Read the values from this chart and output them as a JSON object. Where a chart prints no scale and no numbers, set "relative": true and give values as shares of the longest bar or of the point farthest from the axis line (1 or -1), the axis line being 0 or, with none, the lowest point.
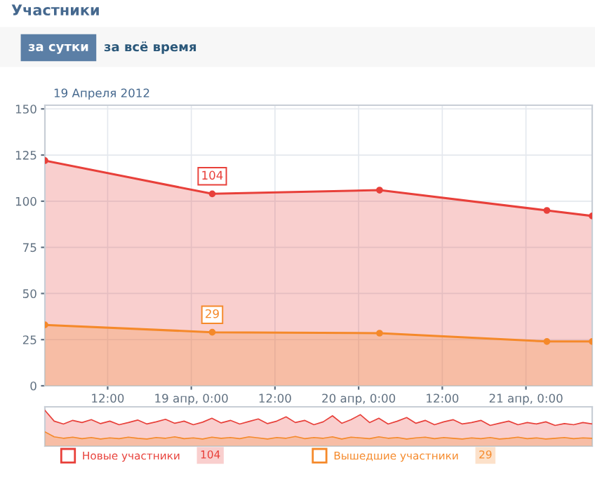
{
  "chart_data": [
    {
      "type": "area",
      "title": "Участники",
      "subtitle": "19 Апреля 2012",
      "annotations": [
        "за сутки",
        "за всё время",
        "104",
        "29"
      ],
      "x": [
        "2012-04-18T03:00",
        "2012-04-19T03:00",
        "2012-04-20T03:00",
        "2012-04-21T03:00",
        "2012-04-21T09:30"
      ],
      "series": [
        {
          "name": "Новые участники",
          "color": "#e8403a",
          "values": [
            122,
            104,
            106,
            95,
            92
          ],
          "value_labels": [
            null,
            "104",
            null,
            null,
            null
          ]
        },
        {
          "name": "Вышедшие участники",
          "color": "#f5892a",
          "values": [
            33,
            29,
            28.5,
            24,
            24
          ],
          "value_labels": [
            null,
            "29",
            null,
            null,
            null
          ]
        }
      ],
      "xlim": [
        "2012-04-18T03:00",
        "2012-04-21T09:30"
      ],
      "xticks": [
        {
          "value": "2012-04-18T12:00",
          "label": "12:00"
        },
        {
          "value": "2012-04-19T00:00",
          "label": "19 апр, 0:00"
        },
        {
          "value": "2012-04-19T12:00",
          "label": "12:00"
        },
        {
          "value": "2012-04-20T00:00",
          "label": "20 апр, 0:00"
        },
        {
          "value": "2012-04-20T12:00",
          "label": "12:00"
        },
        {
          "value": "2012-04-21T00:00",
          "label": "21 апр, 0:00"
        }
      ],
      "ylim": [
        0,
        152
      ],
      "yticks": [
        0,
        25,
        50,
        75,
        100,
        125,
        150
      ],
      "grid": true,
      "legend": "bottom",
      "marker": "circle",
      "line_style": "solid"
    },
    {
      "type": "area",
      "relative": true,
      "categories": [
        null,
        null,
        null,
        null,
        null,
        null,
        null,
        null,
        null,
        null,
        null,
        null,
        null,
        null,
        null,
        null,
        null,
        null,
        null,
        null,
        null,
        null,
        null,
        null,
        null,
        null,
        null,
        null,
        null,
        null,
        null,
        null,
        null,
        null,
        null,
        null,
        null,
        null,
        null,
        null,
        null,
        null,
        null,
        null,
        null,
        null,
        null,
        null,
        null,
        null,
        null,
        null,
        null,
        null,
        null,
        null,
        null,
        null,
        null,
        null
      ],
      "series": [
        {
          "color": "#e8403a",
          "values": [
            1.0,
            0.7,
            0.62,
            0.72,
            0.66,
            0.74,
            0.63,
            0.7,
            0.6,
            0.66,
            0.73,
            0.62,
            0.68,
            0.75,
            0.64,
            0.7,
            0.6,
            0.67,
            0.78,
            0.65,
            0.72,
            0.62,
            0.69,
            0.76,
            0.63,
            0.7,
            0.82,
            0.66,
            0.72,
            0.6,
            0.68,
            0.85,
            0.64,
            0.74,
            0.88,
            0.66,
            0.78,
            0.62,
            0.7,
            0.8,
            0.64,
            0.72,
            0.6,
            0.68,
            0.74,
            0.62,
            0.66,
            0.72,
            0.58,
            0.64,
            0.7,
            0.6,
            0.66,
            0.62,
            0.68,
            0.58,
            0.63,
            0.6,
            0.66,
            0.62
          ]
        },
        {
          "color": "#f5892a",
          "values": [
            0.4,
            0.26,
            0.22,
            0.25,
            0.21,
            0.24,
            0.2,
            0.23,
            0.21,
            0.25,
            0.22,
            0.2,
            0.24,
            0.22,
            0.26,
            0.21,
            0.23,
            0.2,
            0.25,
            0.22,
            0.24,
            0.21,
            0.26,
            0.23,
            0.2,
            0.24,
            0.22,
            0.27,
            0.21,
            0.24,
            0.22,
            0.26,
            0.2,
            0.25,
            0.23,
            0.21,
            0.26,
            0.22,
            0.24,
            0.2,
            0.23,
            0.25,
            0.21,
            0.24,
            0.22,
            0.2,
            0.23,
            0.21,
            0.24,
            0.2,
            0.22,
            0.25,
            0.21,
            0.23,
            0.2,
            0.22,
            0.24,
            0.21,
            0.23,
            0.22
          ]
        }
      ]
    }
  ]
}
